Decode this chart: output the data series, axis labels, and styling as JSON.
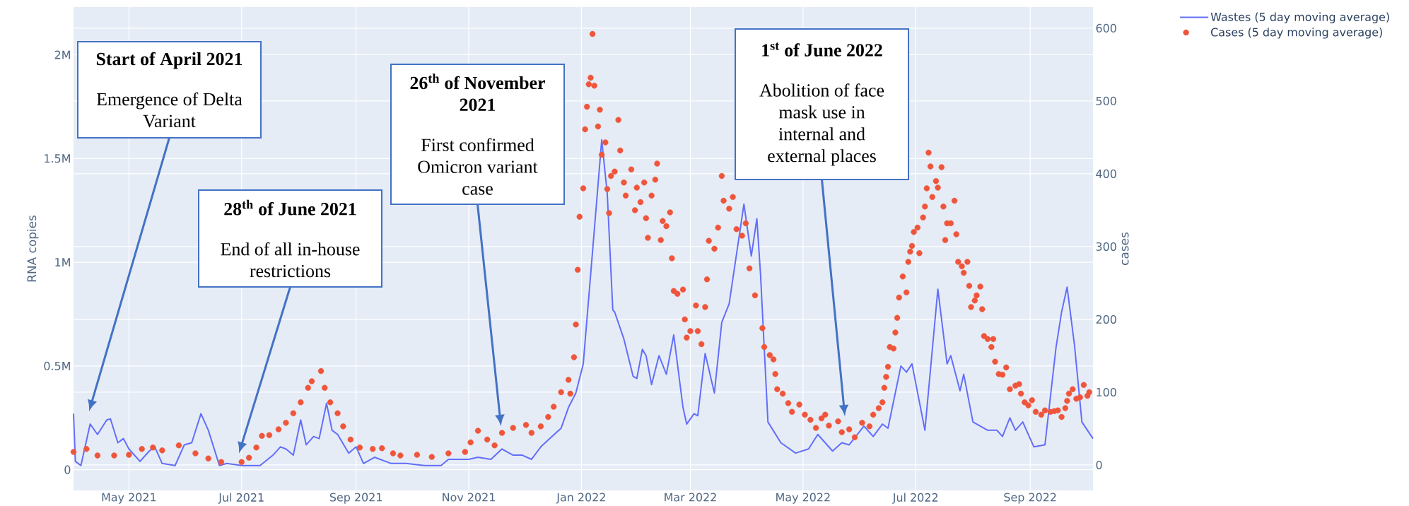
{
  "chart_data": {
    "type": "line",
    "ylabel": "RNA copies",
    "y2label": "cases",
    "xlim": [
      "2021-04-01",
      "2022-10-05"
    ],
    "xticks": [
      {
        "value": "2021-05-01",
        "label": "May 2021"
      },
      {
        "value": "2021-07-01",
        "label": "Jul 2021"
      },
      {
        "value": "2021-09-01",
        "label": "Sep 2021"
      },
      {
        "value": "2021-11-01",
        "label": "Nov 2021"
      },
      {
        "value": "2022-01-01",
        "label": "Jan 2022"
      },
      {
        "value": "2022-03-01",
        "label": "Mar 2022"
      },
      {
        "value": "2022-05-01",
        "label": "May 2022"
      },
      {
        "value": "2022-07-01",
        "label": "Jul 2022"
      },
      {
        "value": "2022-09-01",
        "label": "Sep 2022"
      }
    ],
    "ylim": [
      -100000,
      2230000
    ],
    "yticks": [
      0,
      {
        "value": 500000,
        "label": "0.5M"
      },
      {
        "value": 1000000,
        "label": "1M"
      },
      {
        "value": 1500000,
        "label": "1.5M"
      },
      {
        "value": 2000000,
        "label": "2M"
      }
    ],
    "y2lim": [
      -35,
      629
    ],
    "y2ticks": [
      0,
      100,
      200,
      300,
      400,
      500,
      600
    ],
    "grid": true,
    "legend": "top right",
    "series": [
      {
        "name": "Wastes (5 day moving average)",
        "color": "#636efa",
        "marker": "none",
        "line_style": "solid",
        "x": [
          "2021-04-01",
          "2021-04-02",
          "2021-04-05",
          "2021-04-10",
          "2021-04-14",
          "2021-04-19",
          "2021-04-21",
          "2021-04-25",
          "2021-04-28",
          "2021-05-01",
          "2021-05-07",
          "2021-05-12",
          "2021-05-15",
          "2021-05-19",
          "2021-05-26",
          "2021-05-31",
          "2021-06-04",
          "2021-06-09",
          "2021-06-13",
          "2021-06-19",
          "2021-06-23",
          "2021-07-01",
          "2021-07-11",
          "2021-07-18",
          "2021-07-22",
          "2021-07-25",
          "2021-07-29",
          "2021-08-02",
          "2021-08-05",
          "2021-08-09",
          "2021-08-12",
          "2021-08-16",
          "2021-08-19",
          "2021-08-22",
          "2021-08-28",
          "2021-09-01",
          "2021-09-05",
          "2021-09-11",
          "2021-09-20",
          "2021-09-28",
          "2021-10-08",
          "2021-10-17",
          "2021-10-21",
          "2021-11-01",
          "2021-11-06",
          "2021-11-13",
          "2021-11-19",
          "2021-11-25",
          "2021-11-30",
          "2021-12-05",
          "2021-12-10",
          "2021-12-16",
          "2021-12-21",
          "2021-12-25",
          "2021-12-29",
          "2022-01-02",
          "2022-01-06",
          "2022-01-12",
          "2022-01-15",
          "2022-01-18",
          "2022-01-19",
          "2022-01-24",
          "2022-01-29",
          "2022-01-31",
          "2022-02-03",
          "2022-02-05",
          "2022-02-08",
          "2022-02-12",
          "2022-02-16",
          "2022-02-20",
          "2022-02-25",
          "2022-02-27",
          "2022-03-03",
          "2022-03-05",
          "2022-03-09",
          "2022-03-14",
          "2022-03-18",
          "2022-03-22",
          "2022-03-30",
          "2022-04-03",
          "2022-04-06",
          "2022-04-08",
          "2022-04-12",
          "2022-04-19",
          "2022-04-27",
          "2022-05-04",
          "2022-05-09",
          "2022-05-17",
          "2022-05-22",
          "2022-05-26",
          "2022-06-03",
          "2022-06-08",
          "2022-06-13",
          "2022-06-16",
          "2022-06-23",
          "2022-06-26",
          "2022-06-29",
          "2022-07-06",
          "2022-07-13",
          "2022-07-18",
          "2022-07-20",
          "2022-07-25",
          "2022-07-27",
          "2022-08-01",
          "2022-08-09",
          "2022-08-14",
          "2022-08-17",
          "2022-08-21",
          "2022-08-24",
          "2022-08-28",
          "2022-09-03",
          "2022-09-09",
          "2022-09-15",
          "2022-09-18",
          "2022-09-21",
          "2022-09-25",
          "2022-09-29",
          "2022-10-05"
        ],
        "values": [
          270000,
          40000,
          20000,
          220000,
          170000,
          240000,
          245000,
          130000,
          150000,
          100000,
          40000,
          90000,
          110000,
          30000,
          20000,
          120000,
          130000,
          270000,
          190000,
          20000,
          30000,
          20000,
          20000,
          70000,
          110000,
          100000,
          70000,
          240000,
          120000,
          160000,
          150000,
          320000,
          190000,
          170000,
          80000,
          110000,
          30000,
          60000,
          30000,
          30000,
          20000,
          20000,
          50000,
          50000,
          60000,
          50000,
          100000,
          70000,
          70000,
          50000,
          110000,
          160000,
          200000,
          300000,
          370000,
          510000,
          940000,
          1590000,
          1330000,
          770000,
          760000,
          630000,
          450000,
          440000,
          580000,
          550000,
          410000,
          550000,
          460000,
          650000,
          300000,
          220000,
          270000,
          260000,
          560000,
          370000,
          710000,
          800000,
          1280000,
          1030000,
          1210000,
          940000,
          230000,
          130000,
          80000,
          100000,
          170000,
          90000,
          130000,
          120000,
          210000,
          160000,
          220000,
          200000,
          500000,
          470000,
          510000,
          190000,
          870000,
          510000,
          550000,
          380000,
          460000,
          230000,
          190000,
          190000,
          160000,
          250000,
          190000,
          230000,
          110000,
          120000,
          590000,
          760000,
          880000,
          600000,
          230000,
          150000
        ]
      },
      {
        "name": "Cases (5 day moving average)",
        "type": "scatter",
        "axis": "y2",
        "color": "#ef553b",
        "marker": "circle",
        "x": [
          "2021-04-01",
          "2021-04-08",
          "2021-04-14",
          "2021-04-23",
          "2021-05-01",
          "2021-05-08",
          "2021-05-14",
          "2021-05-19",
          "2021-05-28",
          "2021-06-06",
          "2021-06-13",
          "2021-06-20",
          "2021-07-01",
          "2021-07-05",
          "2021-07-09",
          "2021-07-12",
          "2021-07-16",
          "2021-07-21",
          "2021-07-25",
          "2021-07-29",
          "2021-08-02",
          "2021-08-06",
          "2021-08-08",
          "2021-08-13",
          "2021-08-15",
          "2021-08-18",
          "2021-08-22",
          "2021-08-25",
          "2021-08-29",
          "2021-09-03",
          "2021-09-10",
          "2021-09-15",
          "2021-09-21",
          "2021-09-25",
          "2021-10-04",
          "2021-10-12",
          "2021-10-21",
          "2021-10-30",
          "2021-11-02",
          "2021-11-06",
          "2021-11-11",
          "2021-11-15",
          "2021-11-19",
          "2021-11-25",
          "2021-12-02",
          "2021-12-05",
          "2021-12-10",
          "2021-12-14",
          "2021-12-17",
          "2021-12-21",
          "2021-12-25",
          "2021-12-26",
          "2021-12-28",
          "2021-12-29",
          "2021-12-30",
          "2021-12-31",
          "2022-01-02",
          "2022-01-03",
          "2022-01-04",
          "2022-01-05",
          "2022-01-06",
          "2022-01-07",
          "2022-01-08",
          "2022-01-10",
          "2022-01-11",
          "2022-01-12",
          "2022-01-14",
          "2022-01-15",
          "2022-01-16",
          "2022-01-17",
          "2022-01-19",
          "2022-01-21",
          "2022-01-22",
          "2022-01-24",
          "2022-01-25",
          "2022-01-28",
          "2022-01-30",
          "2022-01-31",
          "2022-02-02",
          "2022-02-04",
          "2022-02-05",
          "2022-02-06",
          "2022-02-08",
          "2022-02-10",
          "2022-02-11",
          "2022-02-13",
          "2022-02-14",
          "2022-02-16",
          "2022-02-18",
          "2022-02-19",
          "2022-02-20",
          "2022-02-22",
          "2022-02-25",
          "2022-02-26",
          "2022-02-27",
          "2022-03-01",
          "2022-03-04",
          "2022-03-05",
          "2022-03-07",
          "2022-03-09",
          "2022-03-10",
          "2022-03-11",
          "2022-03-14",
          "2022-03-16",
          "2022-03-18",
          "2022-03-19",
          "2022-03-22",
          "2022-03-24",
          "2022-03-26",
          "2022-03-29",
          "2022-03-31",
          "2022-04-02",
          "2022-04-05",
          "2022-04-09",
          "2022-04-10",
          "2022-04-13",
          "2022-04-15",
          "2022-04-16",
          "2022-04-17",
          "2022-04-20",
          "2022-04-23",
          "2022-04-25",
          "2022-04-29",
          "2022-05-02",
          "2022-05-05",
          "2022-05-08",
          "2022-05-11",
          "2022-05-13",
          "2022-05-15",
          "2022-05-20",
          "2022-05-22",
          "2022-05-26",
          "2022-05-29",
          "2022-06-02",
          "2022-06-06",
          "2022-06-08",
          "2022-06-11",
          "2022-06-13",
          "2022-06-14",
          "2022-06-15",
          "2022-06-16",
          "2022-06-17",
          "2022-06-19",
          "2022-06-20",
          "2022-06-21",
          "2022-06-22",
          "2022-06-24",
          "2022-06-26",
          "2022-06-27",
          "2022-06-28",
          "2022-06-29",
          "2022-06-30",
          "2022-07-02",
          "2022-07-03",
          "2022-07-05",
          "2022-07-06",
          "2022-07-07",
          "2022-07-08",
          "2022-07-09",
          "2022-07-10",
          "2022-07-12",
          "2022-07-13",
          "2022-07-15",
          "2022-07-16",
          "2022-07-17",
          "2022-07-18",
          "2022-07-20",
          "2022-07-22",
          "2022-07-23",
          "2022-07-24",
          "2022-07-26",
          "2022-07-27",
          "2022-07-29",
          "2022-07-30",
          "2022-07-31",
          "2022-08-02",
          "2022-08-03",
          "2022-08-05",
          "2022-08-06",
          "2022-08-07",
          "2022-08-09",
          "2022-08-11",
          "2022-08-12",
          "2022-08-13",
          "2022-08-15",
          "2022-08-17",
          "2022-08-19",
          "2022-08-21",
          "2022-08-24",
          "2022-08-26",
          "2022-08-27",
          "2022-08-29",
          "2022-08-31",
          "2022-09-02",
          "2022-09-04",
          "2022-09-07",
          "2022-09-09",
          "2022-09-12",
          "2022-09-14",
          "2022-09-16",
          "2022-09-18",
          "2022-09-20",
          "2022-09-21",
          "2022-09-22",
          "2022-09-24",
          "2022-09-26",
          "2022-09-28",
          "2022-09-30",
          "2022-10-02",
          "2022-10-03"
        ],
        "values": [
          18,
          22,
          13,
          13,
          14,
          22,
          24,
          20,
          27,
          16,
          9,
          4,
          4,
          10,
          24,
          40,
          41,
          49,
          58,
          71,
          86,
          106,
          115,
          129,
          106,
          86,
          71,
          53,
          35,
          24,
          22,
          23,
          16,
          13,
          14,
          11,
          16,
          18,
          31,
          47,
          35,
          27,
          44,
          51,
          55,
          44,
          53,
          66,
          80,
          100,
          117,
          98,
          148,
          193,
          268,
          341,
          380,
          461,
          492,
          523,
          532,
          592,
          521,
          465,
          488,
          426,
          443,
          379,
          346,
          397,
          403,
          474,
          432,
          388,
          370,
          406,
          350,
          381,
          361,
          388,
          339,
          312,
          370,
          392,
          414,
          309,
          335,
          328,
          347,
          284,
          239,
          235,
          241,
          200,
          175,
          184,
          219,
          184,
          166,
          217,
          255,
          308,
          297,
          326,
          397,
          363,
          352,
          368,
          324,
          315,
          332,
          270,
          233,
          188,
          162,
          151,
          145,
          125,
          104,
          98,
          85,
          73,
          83,
          69,
          62,
          51,
          64,
          69,
          54,
          60,
          45,
          49,
          38,
          58,
          53,
          69,
          78,
          86,
          106,
          121,
          135,
          162,
          160,
          182,
          202,
          230,
          259,
          237,
          279,
          293,
          301,
          320,
          326,
          291,
          340,
          355,
          380,
          429,
          410,
          368,
          390,
          381,
          409,
          355,
          309,
          332,
          332,
          363,
          317,
          279,
          273,
          264,
          279,
          246,
          217,
          226,
          233,
          245,
          214,
          177,
          173,
          162,
          173,
          142,
          125,
          124,
          134,
          104,
          109,
          111,
          98,
          86,
          82,
          89,
          73,
          69,
          75,
          73,
          74,
          75,
          66,
          78,
          88,
          98,
          104,
          91,
          93,
          110,
          95,
          100
        ]
      }
    ],
    "annotations": [
      "Start of April 2021",
      "Emergence of Delta Variant",
      "28$^{th}$ of June 2021",
      "End of all in-house restrictions",
      "26$^{th}$ of November 2021",
      "First confirmed Omicron variant case",
      "1$^{st}$ of June 2022",
      "Abolition of face mask use in internal and external places"
    ]
  }
}
